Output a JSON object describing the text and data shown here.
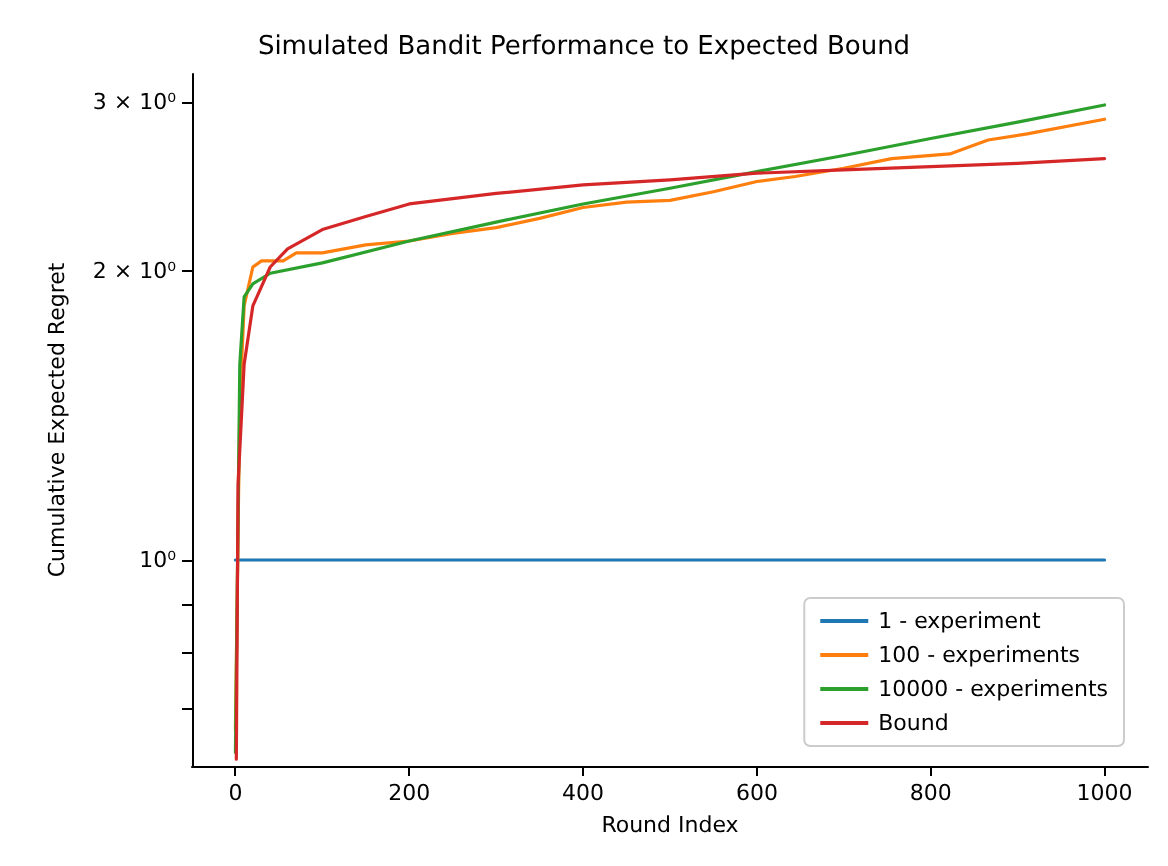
{
  "chart_data": {
    "type": "line",
    "title": "Simulated Bandit Performance to Expected Bound",
    "xlabel": "Round Index",
    "ylabel": "Cumulative Expected Regret",
    "log": "y",
    "grid": false,
    "legend": "bottom right",
    "marker": "none",
    "line_style": "solid",
    "xlim": [
      -50,
      1050
    ],
    "xticks": [
      0,
      200,
      400,
      600,
      800,
      1000
    ],
    "ylim": [
      0.61,
      3.21
    ],
    "yticks": [
      {
        "value": 0.7,
        "label": null
      },
      {
        "value": 0.8,
        "label": null
      },
      {
        "value": 0.9,
        "label": null
      },
      {
        "value": 1,
        "label": "10⁰"
      },
      {
        "value": 2,
        "label": "2 × 10⁰"
      },
      {
        "value": 3,
        "label": "3 × 10⁰"
      }
    ],
    "series": [
      {
        "name": "1 - experiment",
        "color": "#1f77b4",
        "x": [
          0,
          1000
        ],
        "values": [
          1,
          1
        ]
      },
      {
        "name": "100 - experiments",
        "color": "#ff7f0e",
        "x": [
          0,
          5,
          10,
          20,
          30,
          55,
          70,
          100,
          150,
          200,
          250,
          300,
          350,
          400,
          450,
          500,
          550,
          600,
          644,
          700,
          755,
          822,
          866,
          911,
          1000
        ],
        "values": [
          0.665,
          1.46,
          1.84,
          2.02,
          2.05,
          2.05,
          2.09,
          2.09,
          2.13,
          2.15,
          2.19,
          2.22,
          2.27,
          2.33,
          2.36,
          2.37,
          2.42,
          2.48,
          2.51,
          2.56,
          2.62,
          2.65,
          2.74,
          2.78,
          2.88
        ]
      },
      {
        "name": "10000 - experiments",
        "color": "#2ca02c",
        "x": [
          0,
          5,
          10,
          20,
          40,
          100,
          200,
          300,
          400,
          500,
          600,
          700,
          800,
          900,
          1000
        ],
        "values": [
          0.63,
          1.6,
          1.88,
          1.94,
          1.99,
          2.04,
          2.15,
          2.25,
          2.35,
          2.44,
          2.54,
          2.64,
          2.75,
          2.86,
          2.98
        ]
      },
      {
        "name": "Bound",
        "color": "#d62728",
        "x": [
          1,
          3,
          10,
          20,
          40,
          60,
          100,
          150,
          200,
          300,
          400,
          500,
          600,
          700,
          800,
          900,
          1000
        ],
        "values": [
          0.62,
          1.2,
          1.6,
          1.84,
          2.02,
          2.11,
          2.21,
          2.28,
          2.35,
          2.41,
          2.46,
          2.49,
          2.53,
          2.55,
          2.57,
          2.59,
          2.62
        ]
      }
    ]
  }
}
